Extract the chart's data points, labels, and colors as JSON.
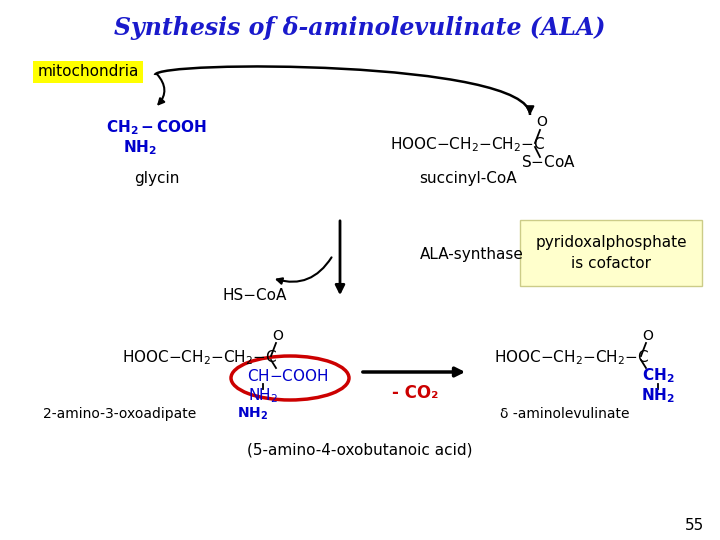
{
  "title": "Synthesis of δ-aminolevulinate (ALA)",
  "title_color": "#1a1acc",
  "title_fontsize": 17,
  "bg_color": "#ffffff",
  "page_number": "55",
  "mito_label": "mitochondria",
  "mito_bg": "#ffff00",
  "mito_text_color": "#000000",
  "glycin_label": "glycin",
  "succinyl_label": "succinyl-CoA",
  "hscoa_formula": "HS−CoA",
  "ala_synthase_label": "ALA-synthase",
  "pyridox_line1": "pyridoxalphosphate",
  "pyridox_line2": "is cofactor",
  "pyridox_bg": "#ffffcc",
  "pyridox_border": "#cccc88",
  "bottom_left_label1": "2-amino-3-oxoadipate",
  "minus_co2": "- CO₂",
  "bottom_right_label1": "δ -aminolevulinate",
  "bottom_note": "(5-amino-4-oxobutanoic acid)",
  "arrow_color": "#000000",
  "text_color_black": "#000000",
  "text_color_blue": "#0000cc",
  "text_color_red": "#cc0000"
}
